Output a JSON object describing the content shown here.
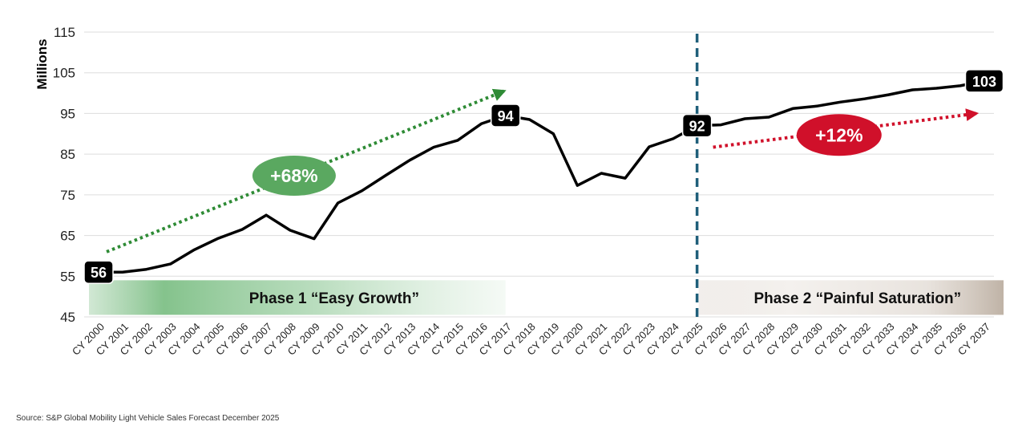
{
  "chart_data": {
    "type": "line",
    "ylabel": "Millions",
    "xlabel": "",
    "ylim": [
      45,
      115
    ],
    "yticks": [
      45,
      55,
      65,
      75,
      85,
      95,
      105,
      115
    ],
    "grid": "horizontal",
    "categories": [
      "CY 2000",
      "CY 2001",
      "CY 2002",
      "CY 2003",
      "CY 2004",
      "CY 2005",
      "CY 2006",
      "CY 2007",
      "CY 2008",
      "CY 2009",
      "CY 2010",
      "CY 2011",
      "CY 2012",
      "CY 2013",
      "CY 2014",
      "CY 2015",
      "CY 2016",
      "CY 2017",
      "CY 2018",
      "CY 2019",
      "CY 2020",
      "CY 2021",
      "CY 2022",
      "CY 2023",
      "CY 2024",
      "CY 2025",
      "CY 2026",
      "CY 2027",
      "CY 2028",
      "CY 2029",
      "CY 2030",
      "CY 2031",
      "CY 2032",
      "CY 2033",
      "CY 2034",
      "CY 2035",
      "CY 2036",
      "CY 2037"
    ],
    "series": [
      {
        "values": [
          56,
          56,
          56.7,
          58,
          61.5,
          64.3,
          66.5,
          70,
          66.3,
          64.2,
          73,
          76,
          79.8,
          83.5,
          86.7,
          88.4,
          92.5,
          94.5,
          93.5,
          90,
          77.3,
          80.3,
          79.1,
          86.8,
          88.8,
          92,
          92.2,
          93.7,
          94.1,
          96.2,
          96.8,
          97.8,
          98.6,
          99.6,
          100.8,
          101.2,
          101.8,
          103
        ]
      }
    ],
    "data_labels": [
      {
        "category": "CY 2000",
        "text": "56"
      },
      {
        "category": "CY 2017",
        "text": "94"
      },
      {
        "category": "CY 2025",
        "text": "92"
      },
      {
        "category": "CY 2037",
        "text": "103"
      }
    ],
    "divider_category": "CY 2025",
    "annotations": {
      "growth_pill": "+68%",
      "saturation_pill": "+12%",
      "phase1": "Phase 1 “Easy Growth”",
      "phase2": "Phase 2 “Painful Saturation”"
    },
    "colors": {
      "line": "#000000",
      "divider": "#1f5f7a",
      "growth_arrow": "#2e8b35",
      "growth_pill": "#5aa860",
      "saturation_arrow": "#d0102a",
      "saturation_pill": "#d0102a",
      "phase1_band": "#7cbd84",
      "phase2_band": "#c9bdb1",
      "grid": "#dddddd"
    }
  },
  "source": "Source: S&P Global Mobility Light Vehicle Sales Forecast December 2025"
}
